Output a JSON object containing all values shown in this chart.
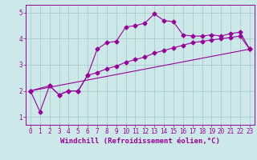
{
  "xlabel": "Windchill (Refroidissement éolien,°C)",
  "bg_color": "#cce8e8",
  "grid_color": "#aacccc",
  "line_color": "#990099",
  "marker": "D",
  "xlim": [
    -0.5,
    23.5
  ],
  "ylim": [
    0.7,
    5.3
  ],
  "xticks": [
    0,
    1,
    2,
    3,
    4,
    5,
    6,
    7,
    8,
    9,
    10,
    11,
    12,
    13,
    14,
    15,
    16,
    17,
    18,
    19,
    20,
    21,
    22,
    23
  ],
  "yticks": [
    1,
    2,
    3,
    4,
    5
  ],
  "line1_x": [
    0,
    1,
    2,
    3,
    4,
    5,
    6,
    7,
    8,
    9,
    10,
    11,
    12,
    13,
    14,
    15,
    16,
    17,
    18,
    19,
    20,
    21,
    22,
    23
  ],
  "line1_y": [
    2.0,
    1.2,
    2.2,
    1.85,
    2.0,
    2.0,
    2.6,
    3.6,
    3.85,
    3.9,
    4.45,
    4.5,
    4.6,
    4.95,
    4.7,
    4.65,
    4.15,
    4.1,
    4.1,
    4.15,
    4.1,
    4.2,
    4.25,
    3.6
  ],
  "line2_x": [
    0,
    2,
    3,
    4,
    5,
    6,
    7,
    8,
    9,
    10,
    11,
    12,
    13,
    14,
    15,
    16,
    17,
    18,
    19,
    20,
    21,
    22,
    23
  ],
  "line2_y": [
    2.0,
    2.2,
    1.85,
    2.0,
    2.0,
    2.6,
    2.7,
    2.85,
    2.95,
    3.1,
    3.2,
    3.3,
    3.45,
    3.55,
    3.65,
    3.75,
    3.85,
    3.9,
    3.95,
    4.0,
    4.05,
    4.1,
    3.6
  ],
  "line3_x": [
    0,
    23
  ],
  "line3_y": [
    2.0,
    3.6
  ],
  "markersize": 2.5,
  "linewidth": 0.8,
  "tick_fontsize": 5.5,
  "label_fontsize": 6.5
}
